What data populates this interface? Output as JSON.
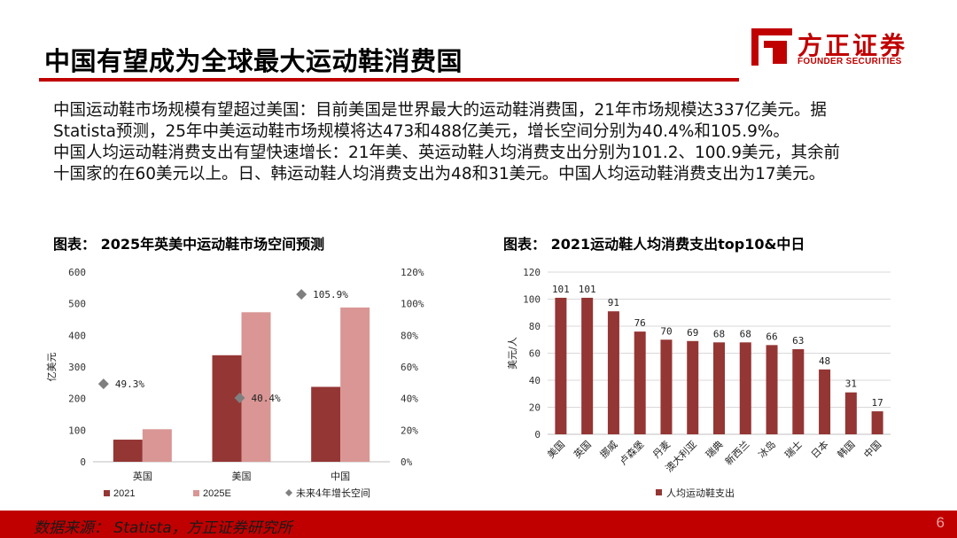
{
  "page": {
    "title": "中国有望成为全球最大运动鞋消费国",
    "logo": {
      "name": "方正证券",
      "sub": "FOUNDER SECURITIES"
    },
    "body": [
      "中国运动鞋市场规模有望超过美国：目前美国是世界最大的运动鞋消费国，21年市场规模达337亿美元。据",
      "Statista预测，25年中美运动鞋市场规模将达473和488亿美元，增长空间分别为40.4%和105.9%。",
      "中国人均运动鞋消费支出有望快速增长：21年美、英运动鞋人均消费支出分别为101.2、100.9美元，其余前",
      "十国家的在60美元以上。日、韩运动鞋人均消费支出为48和31美元。中国人均运动鞋消费支出为17美元。"
    ],
    "footer": {
      "source": "数据来源：  Statista，方正证券研究所",
      "page_number": "6"
    }
  },
  "chart_data": [
    {
      "type": "bar",
      "title": "图表：  2025年英美中运动鞋市场空间预测",
      "categories": [
        "英国",
        "美国",
        "中国"
      ],
      "series": [
        {
          "name": "2021",
          "values": [
            70,
            337,
            237
          ],
          "color": "#943634"
        },
        {
          "name": "2025E",
          "values": [
            103,
            473,
            488
          ],
          "color": "#d99694"
        }
      ],
      "secondary_series": {
        "name": "未来4年增长空间",
        "type": "scatter",
        "values": [
          49.3,
          40.4,
          105.9
        ],
        "labels": [
          "49.3%",
          "40.4%",
          "105.9%"
        ],
        "color": "#7f7f7f"
      },
      "ylabel": "亿美元",
      "ylim": [
        0,
        600
      ],
      "yticks": [
        "0",
        "100",
        "200",
        "300",
        "400",
        "500",
        "600"
      ],
      "y2lim": [
        0,
        120
      ],
      "y2ticks": [
        "0%",
        "20%",
        "40%",
        "60%",
        "80%",
        "100%",
        "120%"
      ],
      "legend": "bottom",
      "grid": false
    },
    {
      "type": "bar",
      "title": "图表：  2021运动鞋人均消费支出top10&中日",
      "categories": [
        "美国",
        "英国",
        "挪威",
        "卢森堡",
        "丹麦",
        "澳大利亚",
        "瑞典",
        "新西兰",
        "冰岛",
        "瑞士",
        "日本",
        "韩国",
        "中国"
      ],
      "series": [
        {
          "name": "人均运动鞋支出",
          "values": [
            101,
            101,
            91,
            76,
            70,
            69,
            68,
            68,
            66,
            63,
            48,
            31,
            17
          ],
          "labels": [
            "101",
            "101",
            "91",
            "76",
            "70",
            "69",
            "68",
            "68",
            "66",
            "63",
            "48",
            "31",
            "17"
          ],
          "color": "#943634"
        }
      ],
      "ylabel": "美元/人",
      "ylim": [
        0,
        120
      ],
      "yticks": [
        "0",
        "20",
        "40",
        "60",
        "80",
        "100",
        "120"
      ],
      "legend": "bottom",
      "grid": true
    }
  ]
}
